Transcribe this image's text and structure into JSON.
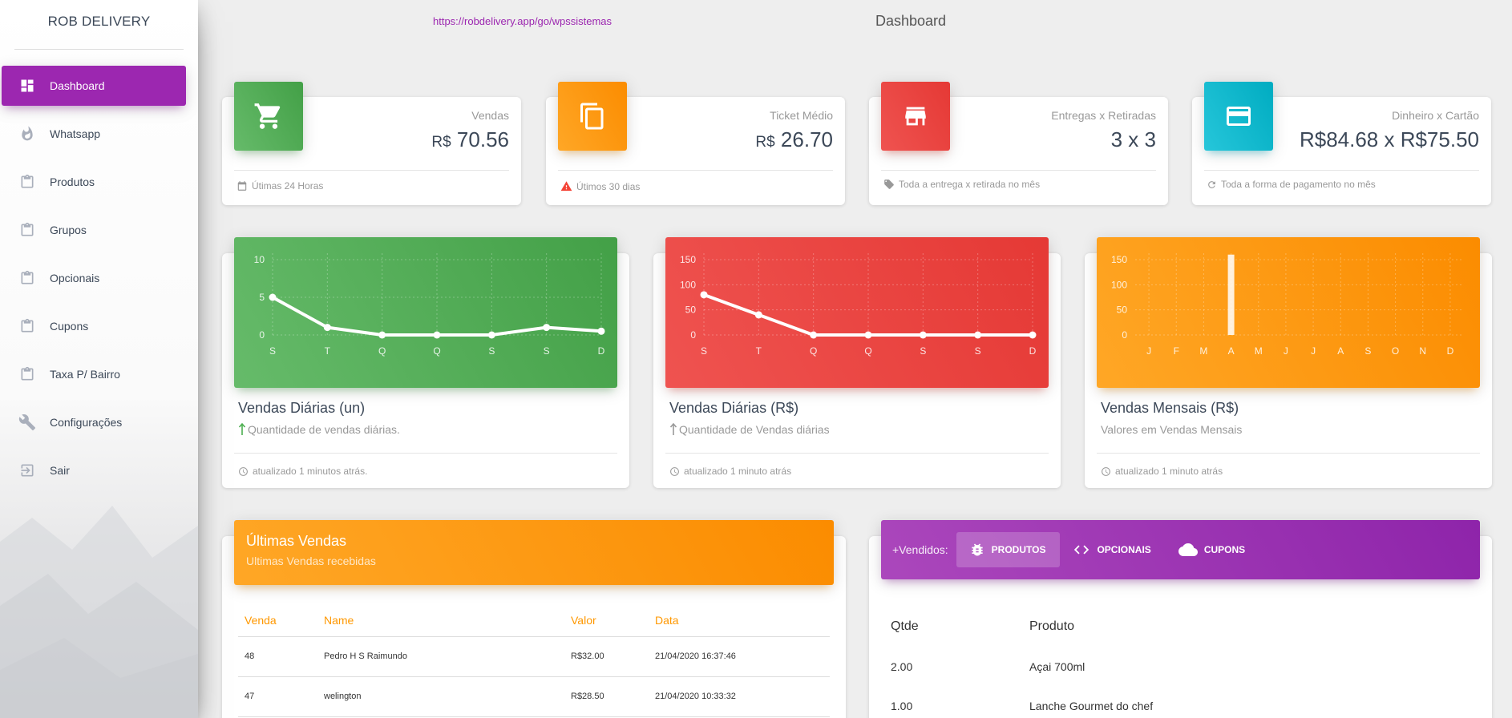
{
  "sidebar": {
    "brand": "ROB DELIVERY",
    "items": [
      {
        "label": "Dashboard",
        "icon": "dashboard-icon",
        "active": true
      },
      {
        "label": "Whatsapp",
        "icon": "flame-icon"
      },
      {
        "label": "Produtos",
        "icon": "clipboard-icon"
      },
      {
        "label": "Grupos",
        "icon": "clipboard-icon"
      },
      {
        "label": "Opcionais",
        "icon": "clipboard-icon"
      },
      {
        "label": "Cupons",
        "icon": "clipboard-icon"
      },
      {
        "label": "Taxa P/ Bairro",
        "icon": "clipboard-icon"
      },
      {
        "label": "Configurações",
        "icon": "wrench-icon"
      },
      {
        "label": "Sair",
        "icon": "exit-icon"
      }
    ]
  },
  "topbar": {
    "url": "https://robdelivery.app/go/wpssistemas",
    "title": "Dashboard"
  },
  "stats": [
    {
      "category": "Vendas",
      "currency": "R$",
      "value": "70.56",
      "footer": "Útimas 24 Horas",
      "icon": "cart-icon",
      "color": "#4caf50"
    },
    {
      "category": "Ticket Médio",
      "currency": "R$",
      "value": "26.70",
      "footer": "Útimos 30 dias",
      "icon": "copy-icon",
      "color": "#ff9800"
    },
    {
      "category": "Entregas x Retiradas",
      "value": "3 x 3",
      "footer": "Toda a entrega x retirada no mês",
      "icon": "store-icon",
      "color": "#f44336"
    },
    {
      "category": "Dinheiro x Cartão",
      "value": "R$84.68 x R$75.50",
      "footer": "Toda a forma de pagamento no mês",
      "icon": "credit-card-icon",
      "color": "#00bcd4"
    }
  ],
  "charts": [
    {
      "title": "Vendas Diárias (un)",
      "desc": "Quantidade de vendas diárias.",
      "updated": "atualizado 1 minutos atrás.",
      "desc_arrow": true
    },
    {
      "title": "Vendas Diárias (R$)",
      "desc": "Quantidade de Vendas diárias",
      "updated": "atualizado 1 minuto atrás",
      "desc_arrow": true
    },
    {
      "title": "Vendas Mensais (R$)",
      "desc": "Valores em Vendas Mensais",
      "updated": "atualizado 1 minuto atrás",
      "desc_arrow": false
    }
  ],
  "chart_data": [
    {
      "type": "line",
      "categories": [
        "S",
        "T",
        "Q",
        "Q",
        "S",
        "S",
        "D"
      ],
      "values": [
        5,
        1,
        0,
        0,
        0,
        1,
        0.5
      ],
      "yticks": [
        0,
        5,
        10
      ],
      "ylim": [
        0,
        10
      ],
      "grid": true,
      "color": "#4caf50"
    },
    {
      "type": "line",
      "categories": [
        "S",
        "T",
        "Q",
        "Q",
        "S",
        "S",
        "D"
      ],
      "values": [
        80,
        40,
        0,
        0,
        0,
        0,
        0
      ],
      "yticks": [
        0,
        50,
        100,
        150
      ],
      "ylim": [
        0,
        150
      ],
      "grid": true,
      "color": "#f44336"
    },
    {
      "type": "bar",
      "categories": [
        "J",
        "F",
        "M",
        "A",
        "M",
        "J",
        "J",
        "A",
        "S",
        "O",
        "N",
        "D"
      ],
      "values": [
        0,
        0,
        0,
        160,
        0,
        0,
        0,
        0,
        0,
        0,
        0,
        0
      ],
      "yticks": [
        0,
        50,
        100,
        150
      ],
      "ylim": [
        0,
        150
      ],
      "grid": true,
      "color": "#ff9800"
    }
  ],
  "vendas": {
    "title": "Últimas Vendas",
    "subtitle": "Ultimas Vendas recebidas",
    "columns": [
      "Venda",
      "Name",
      "Valor",
      "Data"
    ],
    "rows": [
      [
        "48",
        "Pedro H S Raimundo",
        "R$32.00",
        "21/04/2020 16:37:46"
      ],
      [
        "47",
        "welington",
        "R$28.50",
        "21/04/2020 10:33:32"
      ]
    ]
  },
  "maisvendidos": {
    "label": "+Vendidos:",
    "tabs": [
      {
        "label": "PRODUTOS",
        "icon": "bug-icon",
        "active": true
      },
      {
        "label": "OPCIONAIS",
        "icon": "code-icon"
      },
      {
        "label": "CUPONS",
        "icon": "cloud-icon"
      }
    ],
    "columns": [
      "Qtde",
      "Produto"
    ],
    "rows": [
      [
        "2.00",
        "Açai 700ml"
      ],
      [
        "1.00",
        "Lanche Gourmet do chef"
      ]
    ]
  }
}
